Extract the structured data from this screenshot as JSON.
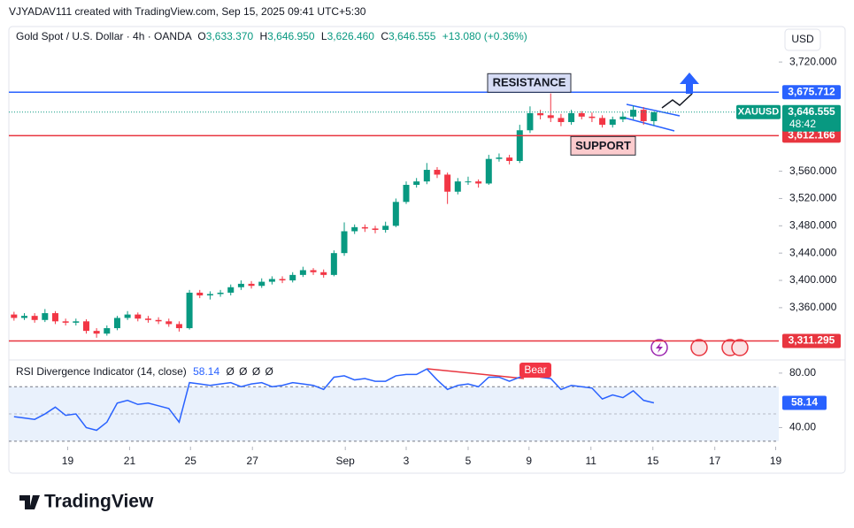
{
  "header": {
    "credit": "VJYADAV111 created with TradingView.com, Sep 15, 2025 09:41 UTC+5:30",
    "currency": "USD"
  },
  "chart_data": [
    {
      "type": "candlestick",
      "title": "Gold Spot / U.S. Dollar · 4h · OANDA",
      "legend": [
        {
          "key": "O",
          "value": "3,633.370"
        },
        {
          "key": "H",
          "value": "3,646.950"
        },
        {
          "key": "L",
          "value": "3,626.460"
        },
        {
          "key": "C",
          "value": "3,646.555"
        }
      ],
      "change": "+13.080 (+0.36%)",
      "up_color": "#089981",
      "down_color": "#f23645",
      "open": [
        3350,
        3345,
        3348,
        3342,
        3352,
        3340,
        3338,
        3340,
        3326,
        3322,
        3330,
        3345,
        3350,
        3344,
        3342,
        3340,
        3336,
        3330,
        3382,
        3378,
        3380,
        3382,
        3390,
        3395,
        3392,
        3398,
        3402,
        3400,
        3408,
        3415,
        3412,
        3408,
        3440,
        3472,
        3478,
        3476,
        3474,
        3480,
        3515,
        3540,
        3545,
        3562,
        3555,
        3530,
        3545,
        3545,
        3542,
        3578,
        3580,
        3575,
        3620,
        3645,
        3642,
        3638,
        3632,
        3645,
        3640,
        3638,
        3628,
        3636,
        3640,
        3650,
        3633.37
      ],
      "high": [
        3354,
        3352,
        3352,
        3358,
        3355,
        3344,
        3344,
        3343,
        3330,
        3334,
        3348,
        3355,
        3353,
        3348,
        3346,
        3344,
        3340,
        3386,
        3386,
        3384,
        3386,
        3394,
        3400,
        3399,
        3403,
        3406,
        3406,
        3412,
        3420,
        3418,
        3416,
        3444,
        3485,
        3482,
        3482,
        3480,
        3486,
        3520,
        3545,
        3550,
        3572,
        3566,
        3558,
        3550,
        3552,
        3548,
        3584,
        3586,
        3584,
        3628,
        3655,
        3650,
        3674,
        3644,
        3650,
        3648,
        3646,
        3642,
        3640,
        3646,
        3656,
        3654,
        3646.95
      ],
      "low": [
        3341,
        3342,
        3338,
        3339,
        3336,
        3334,
        3334,
        3322,
        3316,
        3319,
        3327,
        3342,
        3340,
        3338,
        3336,
        3332,
        3325,
        3328,
        3374,
        3372,
        3376,
        3378,
        3386,
        3388,
        3389,
        3394,
        3396,
        3397,
        3405,
        3408,
        3404,
        3406,
        3436,
        3468,
        3471,
        3469,
        3470,
        3478,
        3512,
        3536,
        3541,
        3550,
        3512,
        3526,
        3540,
        3536,
        3540,
        3574,
        3570,
        3572,
        3616,
        3636,
        3632,
        3626,
        3628,
        3636,
        3632,
        3624,
        3624,
        3632,
        3636,
        3628,
        3626.46
      ],
      "close": [
        3345,
        3348,
        3342,
        3352,
        3340,
        3338,
        3340,
        3326,
        3322,
        3330,
        3345,
        3350,
        3344,
        3342,
        3340,
        3336,
        3330,
        3382,
        3378,
        3380,
        3382,
        3390,
        3395,
        3392,
        3398,
        3402,
        3400,
        3408,
        3415,
        3412,
        3408,
        3440,
        3472,
        3478,
        3476,
        3474,
        3480,
        3515,
        3540,
        3545,
        3562,
        3555,
        3530,
        3545,
        3545,
        3542,
        3578,
        3580,
        3575,
        3620,
        3645,
        3642,
        3638,
        3632,
        3645,
        3640,
        3638,
        3628,
        3636,
        3640,
        3650,
        3633.37,
        3646.555
      ],
      "xlim": [
        -0.5,
        74.1
      ],
      "ylim": [
        3286,
        3772
      ],
      "yticks": [
        {
          "value": 3720,
          "label": "3,720.000"
        },
        {
          "value": 3560,
          "label": "3,560.000"
        },
        {
          "value": 3520,
          "label": "3,520.000"
        },
        {
          "value": 3480,
          "label": "3,480.000"
        },
        {
          "value": 3440,
          "label": "3,440.000"
        },
        {
          "value": 3400,
          "label": "3,400.000"
        },
        {
          "value": 3360,
          "label": "3,360.000"
        }
      ],
      "levels": [
        {
          "name": "RESISTANCE",
          "value": 3675.712,
          "label": "3,675.712",
          "color": "#2962ff"
        },
        {
          "name": "SUPPORT",
          "value": 3612.166,
          "label": "3,612.166",
          "color": "#e8353f"
        },
        {
          "value": 3311.295,
          "label": "3,311.295",
          "color": "#e8353f"
        }
      ],
      "last_price": {
        "symbol": "XAUUSD",
        "value": 3646.555,
        "label": "3,646.555",
        "countdown": "48:42",
        "color": "#089981"
      }
    },
    {
      "type": "line",
      "title": "RSI Divergence Indicator (14, close)",
      "last_label": "58.14",
      "na": [
        "Ø",
        "Ø",
        "Ø",
        "Ø"
      ],
      "color": "#2962ff",
      "values": [
        48,
        47,
        46,
        50,
        55,
        49,
        50,
        40,
        38,
        44,
        58,
        60,
        57,
        58,
        56,
        54,
        44,
        73,
        72,
        71,
        72,
        73,
        70,
        72,
        73,
        70,
        71,
        73,
        72,
        71,
        68,
        77,
        78,
        75,
        76,
        74,
        74,
        78,
        79,
        79,
        83,
        75,
        68,
        71,
        72,
        70,
        77,
        77,
        74,
        77,
        79,
        77,
        76,
        68,
        71,
        70,
        69,
        61,
        64,
        62,
        67,
        60,
        58.14
      ],
      "annotation": "Bear",
      "band": [
        30,
        70
      ],
      "midline": 50,
      "xlim": [
        -0.5,
        74.1
      ],
      "ylim": [
        26,
        89
      ],
      "yticks": [
        {
          "value": 80,
          "label": "80.00"
        },
        {
          "value": 40,
          "label": "40.00"
        }
      ],
      "xticks": [
        {
          "value": 5.2,
          "label": "19"
        },
        {
          "value": 11.2,
          "label": "21"
        },
        {
          "value": 17.1,
          "label": "25"
        },
        {
          "value": 23.1,
          "label": "27"
        },
        {
          "value": 32.1,
          "label": "Sep"
        },
        {
          "value": 38,
          "label": "3"
        },
        {
          "value": 44,
          "label": "5"
        },
        {
          "value": 49.9,
          "label": "9"
        },
        {
          "value": 55.9,
          "label": "11"
        },
        {
          "value": 61.9,
          "label": "15"
        },
        {
          "value": 67.9,
          "label": "17"
        },
        {
          "value": 73.8,
          "label": "19"
        }
      ]
    }
  ],
  "footer": {
    "brand": "TradingView"
  }
}
